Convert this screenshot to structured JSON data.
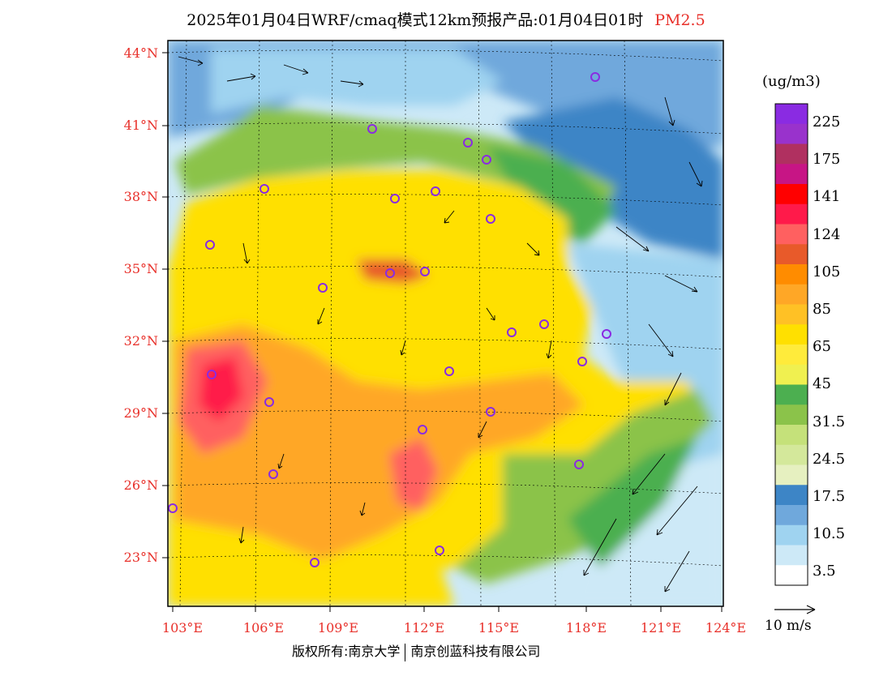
{
  "title": {
    "main": "2025年01月04日WRF/cmaq模式12km预报产品:01月04日01时",
    "product": "PM2.5"
  },
  "lat_labels": [
    "44°N",
    "41°N",
    "38°N",
    "35°N",
    "32°N",
    "29°N",
    "26°N",
    "23°N"
  ],
  "lon_labels": [
    "103°E",
    "106°E",
    "109°E",
    "112°E",
    "115°E",
    "118°E",
    "121°E",
    "124°E"
  ],
  "colorbar": {
    "unit": "(ug/m3)",
    "labels": [
      "225",
      "175",
      "141",
      "124",
      "105",
      "85",
      "65",
      "45",
      "31.5",
      "24.5",
      "17.5",
      "10.5",
      "3.5"
    ],
    "colors": [
      "#8a2be2",
      "#9932cc",
      "#b03060",
      "#c71585",
      "#ff0000",
      "#ff1a4a",
      "#ff6060",
      "#e85a2a",
      "#ff8c00",
      "#ffa726",
      "#ffc125",
      "#ffe000",
      "#ffeb3b",
      "#f0f050",
      "#4caf50",
      "#8bc34a",
      "#c5e17a",
      "#d4e89b",
      "#e6f0c0",
      "#3d85c6",
      "#6fa8dc",
      "#9fd3f0",
      "#cde9f7",
      "#ffffff"
    ]
  },
  "vector_label": "10 m/s",
  "footer": {
    "left": "版权所有:南京大学",
    "right": "南京创蓝科技有限公司"
  },
  "colors": {
    "accent_red": "#e8302a",
    "station_marker": "#8a2be2"
  }
}
